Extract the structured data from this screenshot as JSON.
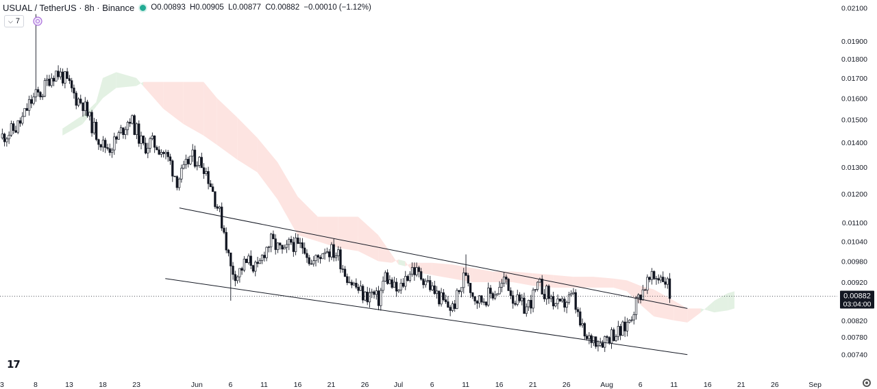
{
  "header": {
    "symbol": "USUAL / TetherUS · 8h · Binance",
    "status_color": "#22ab94",
    "o_label": "O",
    "o_value": "0.00893",
    "h_label": "H",
    "h_value": "0.00905",
    "l_label": "L",
    "l_value": "0.00877",
    "c_label": "C",
    "c_value": "0.00882",
    "change": "−0.00010 (−1.12%)"
  },
  "indicator_button": {
    "label": "7",
    "icon": "chevron-down-icon"
  },
  "price_badge": {
    "price": "0.00882",
    "countdown": "03:04:00",
    "color": "#131722"
  },
  "logo": "17",
  "settings_icon": "gear-icon",
  "chart_data": {
    "type": "candlestick",
    "title": "USUAL / TetherUS · 8h · Binance",
    "price_scale": "log",
    "ylim": [
      0.0072,
      0.0211
    ],
    "y_ticks": [
      "0.02100",
      "0.01900",
      "0.01800",
      "0.01700",
      "0.01600",
      "0.01500",
      "0.01400",
      "0.01300",
      "0.01200",
      "0.01100",
      "0.01040",
      "0.00980",
      "0.00920",
      "0.00820",
      "0.00780",
      "0.00740"
    ],
    "x_ticks": [
      {
        "label": "3",
        "day": -2
      },
      {
        "label": "8",
        "day": 3
      },
      {
        "label": "13",
        "day": 8
      },
      {
        "label": "18",
        "day": 13
      },
      {
        "label": "23",
        "day": 18
      },
      {
        "label": "Jun",
        "day": 27
      },
      {
        "label": "6",
        "day": 32
      },
      {
        "label": "11",
        "day": 37
      },
      {
        "label": "16",
        "day": 42
      },
      {
        "label": "21",
        "day": 47
      },
      {
        "label": "26",
        "day": 52
      },
      {
        "label": "Jul",
        "day": 57
      },
      {
        "label": "6",
        "day": 62
      },
      {
        "label": "11",
        "day": 67
      },
      {
        "label": "16",
        "day": 72
      },
      {
        "label": "21",
        "day": 77
      },
      {
        "label": "26",
        "day": 82
      },
      {
        "label": "Aug",
        "day": 88
      },
      {
        "label": "6",
        "day": 93
      },
      {
        "label": "11",
        "day": 98
      },
      {
        "label": "16",
        "day": 103
      },
      {
        "label": "21",
        "day": 108
      },
      {
        "label": "26",
        "day": 113
      },
      {
        "label": "Sep",
        "day": 119
      }
    ],
    "x_range_days": [
      -2.3,
      122.3
    ],
    "last_price": 0.00882,
    "price_path": [
      {
        "day": -2.3,
        "price": 0.0142
      },
      {
        "day": 0,
        "price": 0.0146
      },
      {
        "day": 1,
        "price": 0.015
      },
      {
        "day": 2,
        "price": 0.0157
      },
      {
        "day": 3,
        "price": 0.0161
      },
      {
        "day": 4,
        "price": 0.0163
      },
      {
        "day": 5,
        "price": 0.017
      },
      {
        "day": 6,
        "price": 0.0173
      },
      {
        "day": 7,
        "price": 0.0171
      },
      {
        "day": 8,
        "price": 0.0166
      },
      {
        "day": 9,
        "price": 0.016
      },
      {
        "day": 10,
        "price": 0.0158
      },
      {
        "day": 11,
        "price": 0.015
      },
      {
        "day": 12,
        "price": 0.0144
      },
      {
        "day": 13,
        "price": 0.0139
      },
      {
        "day": 14,
        "price": 0.0138
      },
      {
        "day": 15,
        "price": 0.0141
      },
      {
        "day": 16,
        "price": 0.0146
      },
      {
        "day": 17,
        "price": 0.0151
      },
      {
        "day": 18,
        "price": 0.0145
      },
      {
        "day": 19,
        "price": 0.0138
      },
      {
        "day": 20,
        "price": 0.014
      },
      {
        "day": 21,
        "price": 0.0139
      },
      {
        "day": 22,
        "price": 0.0136
      },
      {
        "day": 23,
        "price": 0.0132
      },
      {
        "day": 24,
        "price": 0.0125
      },
      {
        "day": 25,
        "price": 0.0128
      },
      {
        "day": 26,
        "price": 0.0134
      },
      {
        "day": 27,
        "price": 0.0133
      },
      {
        "day": 28,
        "price": 0.0131
      },
      {
        "day": 29,
        "price": 0.0124
      },
      {
        "day": 30,
        "price": 0.0116
      },
      {
        "day": 31,
        "price": 0.0108
      },
      {
        "day": 32,
        "price": 0.0096
      },
      {
        "day": 33,
        "price": 0.0094
      },
      {
        "day": 34,
        "price": 0.0097
      },
      {
        "day": 35,
        "price": 0.0098
      },
      {
        "day": 36,
        "price": 0.0095
      },
      {
        "day": 37,
        "price": 0.0101
      },
      {
        "day": 38,
        "price": 0.0104
      },
      {
        "day": 39,
        "price": 0.0102
      },
      {
        "day": 40,
        "price": 0.01
      },
      {
        "day": 41,
        "price": 0.0104
      },
      {
        "day": 42,
        "price": 0.0102
      },
      {
        "day": 43,
        "price": 0.0103
      },
      {
        "day": 44,
        "price": 0.0097
      },
      {
        "day": 45,
        "price": 0.0099
      },
      {
        "day": 46,
        "price": 0.0102
      },
      {
        "day": 47,
        "price": 0.0101
      },
      {
        "day": 48,
        "price": 0.01
      },
      {
        "day": 49,
        "price": 0.0095
      },
      {
        "day": 50,
        "price": 0.0092
      },
      {
        "day": 51,
        "price": 0.009
      },
      {
        "day": 52,
        "price": 0.0088
      },
      {
        "day": 53,
        "price": 0.0089
      },
      {
        "day": 54,
        "price": 0.0087
      },
      {
        "day": 55,
        "price": 0.0094
      },
      {
        "day": 56,
        "price": 0.0091
      },
      {
        "day": 57,
        "price": 0.0089
      },
      {
        "day": 58,
        "price": 0.0093
      },
      {
        "day": 59,
        "price": 0.0096
      },
      {
        "day": 60,
        "price": 0.0094
      },
      {
        "day": 61,
        "price": 0.0093
      },
      {
        "day": 62,
        "price": 0.009
      },
      {
        "day": 63,
        "price": 0.0088
      },
      {
        "day": 64,
        "price": 0.0086
      },
      {
        "day": 65,
        "price": 0.0085
      },
      {
        "day": 66,
        "price": 0.0089
      },
      {
        "day": 67,
        "price": 0.0095
      },
      {
        "day": 68,
        "price": 0.0089
      },
      {
        "day": 69,
        "price": 0.0087
      },
      {
        "day": 70,
        "price": 0.0088
      },
      {
        "day": 71,
        "price": 0.0089
      },
      {
        "day": 72,
        "price": 0.009
      },
      {
        "day": 73,
        "price": 0.0093
      },
      {
        "day": 74,
        "price": 0.0088
      },
      {
        "day": 75,
        "price": 0.0086
      },
      {
        "day": 76,
        "price": 0.0085
      },
      {
        "day": 77,
        "price": 0.0088
      },
      {
        "day": 78,
        "price": 0.0091
      },
      {
        "day": 79,
        "price": 0.0089
      },
      {
        "day": 80,
        "price": 0.0087
      },
      {
        "day": 81,
        "price": 0.0085
      },
      {
        "day": 82,
        "price": 0.0087
      },
      {
        "day": 83,
        "price": 0.0088
      },
      {
        "day": 84,
        "price": 0.0081
      },
      {
        "day": 85,
        "price": 0.0077
      },
      {
        "day": 86,
        "price": 0.0078
      },
      {
        "day": 87,
        "price": 0.0077
      },
      {
        "day": 88,
        "price": 0.0078
      },
      {
        "day": 89,
        "price": 0.0079
      },
      {
        "day": 90,
        "price": 0.0079
      },
      {
        "day": 91,
        "price": 0.0081
      },
      {
        "day": 92,
        "price": 0.0085
      },
      {
        "day": 93,
        "price": 0.0089
      },
      {
        "day": 94,
        "price": 0.0092
      },
      {
        "day": 95,
        "price": 0.0093
      },
      {
        "day": 96,
        "price": 0.0094
      },
      {
        "day": 97,
        "price": 0.0092
      },
      {
        "day": 97.4,
        "price": 0.00882
      }
    ],
    "cloud": [
      {
        "day": 7,
        "a": 0.0146,
        "b": 0.0143
      },
      {
        "day": 10,
        "a": 0.0152,
        "b": 0.0148
      },
      {
        "day": 12,
        "a": 0.0158,
        "b": 0.0156
      },
      {
        "day": 13,
        "a": 0.017,
        "b": 0.016
      },
      {
        "day": 15,
        "a": 0.0173,
        "b": 0.0165
      },
      {
        "day": 18,
        "a": 0.017,
        "b": 0.0166
      },
      {
        "day": 19,
        "a": 0.0166,
        "b": 0.0168
      },
      {
        "day": 22,
        "a": 0.0155,
        "b": 0.0168
      },
      {
        "day": 25,
        "a": 0.0148,
        "b": 0.0168
      },
      {
        "day": 28,
        "a": 0.0143,
        "b": 0.0168
      },
      {
        "day": 30,
        "a": 0.0139,
        "b": 0.016
      },
      {
        "day": 33,
        "a": 0.0133,
        "b": 0.0151
      },
      {
        "day": 36,
        "a": 0.0128,
        "b": 0.0142
      },
      {
        "day": 39,
        "a": 0.0118,
        "b": 0.0132
      },
      {
        "day": 42,
        "a": 0.0106,
        "b": 0.0119
      },
      {
        "day": 45,
        "a": 0.0104,
        "b": 0.0112
      },
      {
        "day": 48,
        "a": 0.0102,
        "b": 0.0112
      },
      {
        "day": 51,
        "a": 0.0101,
        "b": 0.0112
      },
      {
        "day": 54,
        "a": 0.0098,
        "b": 0.0106
      },
      {
        "day": 56,
        "a": 0.00975,
        "b": 0.01
      },
      {
        "day": 57,
        "a": 0.00985,
        "b": 0.0097
      },
      {
        "day": 58,
        "a": 0.0098,
        "b": 0.00965
      },
      {
        "day": 59,
        "a": 0.0095,
        "b": 0.00975
      },
      {
        "day": 62,
        "a": 0.0094,
        "b": 0.00975
      },
      {
        "day": 65,
        "a": 0.0093,
        "b": 0.0097
      },
      {
        "day": 68,
        "a": 0.0092,
        "b": 0.0096
      },
      {
        "day": 71,
        "a": 0.0092,
        "b": 0.0095
      },
      {
        "day": 74,
        "a": 0.0092,
        "b": 0.0095
      },
      {
        "day": 77,
        "a": 0.0091,
        "b": 0.00945
      },
      {
        "day": 80,
        "a": 0.00905,
        "b": 0.0094
      },
      {
        "day": 83,
        "a": 0.00905,
        "b": 0.00935
      },
      {
        "day": 86,
        "a": 0.00905,
        "b": 0.00935
      },
      {
        "day": 89,
        "a": 0.00905,
        "b": 0.0093
      },
      {
        "day": 91,
        "a": 0.00895,
        "b": 0.00925
      },
      {
        "day": 93,
        "a": 0.0086,
        "b": 0.0091
      },
      {
        "day": 95,
        "a": 0.0083,
        "b": 0.009
      },
      {
        "day": 98,
        "a": 0.0082,
        "b": 0.0087
      },
      {
        "day": 100,
        "a": 0.00815,
        "b": 0.0085
      },
      {
        "day": 102,
        "a": 0.0084,
        "b": 0.0085
      },
      {
        "day": 103,
        "a": 0.00855,
        "b": 0.00845
      },
      {
        "day": 104,
        "a": 0.0087,
        "b": 0.0084
      },
      {
        "day": 106,
        "a": 0.0089,
        "b": 0.00845
      },
      {
        "day": 107,
        "a": 0.00895,
        "b": 0.0085
      }
    ],
    "bull_cloud_color": "#e3f1e3",
    "bear_cloud_color": "#fde4e1",
    "trendlines": [
      {
        "from": {
          "day": 24.4,
          "price": 0.0115
        },
        "to": {
          "day": 100,
          "price": 0.0085
        }
      },
      {
        "from": {
          "day": 22.3,
          "price": 0.0093
        },
        "to": {
          "day": 100,
          "price": 0.0074
        }
      }
    ]
  }
}
